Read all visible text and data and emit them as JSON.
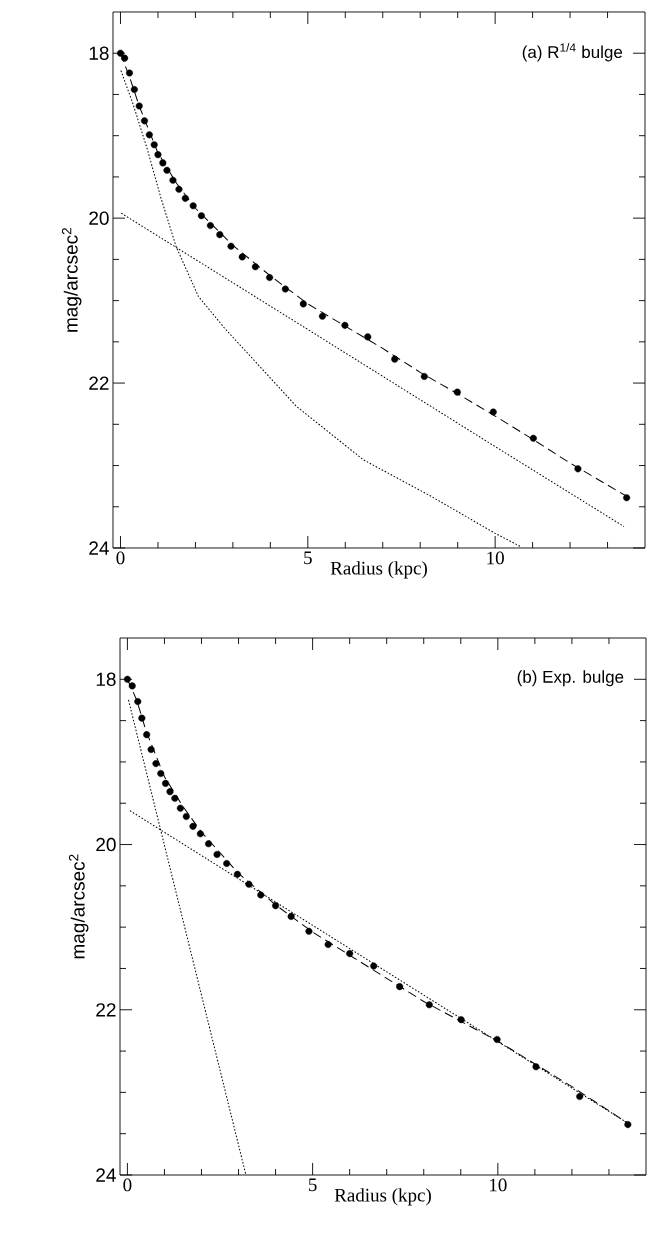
{
  "chart_data": [
    {
      "type": "scatter",
      "annotations": [
        "(a) R$^{1/4}$ bulge"
      ],
      "xlabel": "Radius (kpc)",
      "ylabel": "mag/arcsec$^{2}$",
      "xlim": [
        -0.2,
        14
      ],
      "ylim": [
        24,
        17.5
      ],
      "xticks": [
        0,
        {
          "value": 1,
          "label": null
        },
        {
          "value": 2,
          "label": null
        },
        {
          "value": 3,
          "label": null
        },
        {
          "value": 4,
          "label": null
        },
        5,
        {
          "value": 6,
          "label": null
        },
        {
          "value": 7,
          "label": null
        },
        {
          "value": 8,
          "label": null
        },
        {
          "value": 9,
          "label": null
        },
        10,
        {
          "value": 11,
          "label": null
        },
        {
          "value": 12,
          "label": null
        },
        {
          "value": 13,
          "label": null
        }
      ],
      "yticks": [
        18,
        {
          "value": 18.5,
          "label": null
        },
        {
          "value": 19,
          "label": null
        },
        {
          "value": 19.5,
          "label": null
        },
        20,
        {
          "value": 20.5,
          "label": null
        },
        {
          "value": 21,
          "label": null
        },
        {
          "value": 21.5,
          "label": null
        },
        22,
        {
          "value": 22.5,
          "label": null
        },
        {
          "value": 23,
          "label": null
        },
        {
          "value": 23.5,
          "label": null
        },
        24
      ],
      "series": [
        {
          "type": "scatter",
          "marker": "circle",
          "color": "#000000",
          "x": [
            0.0,
            0.11,
            0.24,
            0.37,
            0.5,
            0.64,
            0.77,
            0.9,
            1.0,
            1.13,
            1.24,
            1.4,
            1.56,
            1.73,
            1.94,
            2.16,
            2.4,
            2.65,
            2.95,
            3.25,
            3.6,
            3.98,
            4.4,
            4.88,
            5.39,
            5.99,
            6.6,
            7.32,
            8.11,
            8.99,
            9.95,
            11.02,
            12.21,
            13.51
          ],
          "values": [
            18.0,
            18.06,
            18.24,
            18.44,
            18.64,
            18.82,
            18.99,
            19.11,
            19.23,
            19.33,
            19.42,
            19.54,
            19.65,
            19.76,
            19.85,
            19.97,
            20.09,
            20.2,
            20.34,
            20.47,
            20.59,
            20.72,
            20.86,
            21.04,
            21.19,
            21.3,
            21.44,
            21.71,
            21.92,
            22.11,
            22.35,
            22.67,
            23.04,
            23.39
          ]
        },
        {
          "type": "line",
          "line_style": "dashed",
          "color": "#000000",
          "x": [
            0.0,
            0.25,
            0.5,
            1.0,
            1.5,
            2.0,
            3.0,
            4.0,
            5.0,
            6.0,
            7.0,
            8.0,
            9.0,
            10.0,
            11.0,
            12.0,
            13.5
          ],
          "values": [
            18.0,
            18.3,
            18.64,
            19.21,
            19.58,
            19.88,
            20.33,
            20.7,
            21.04,
            21.31,
            21.58,
            21.87,
            22.13,
            22.4,
            22.68,
            22.97,
            23.37
          ]
        },
        {
          "type": "line",
          "line_style": "dotted",
          "color": "#000000",
          "x": [
            0.01,
            0.33,
            0.72,
            1.07,
            1.48,
            2.08,
            2.77,
            4.69,
            6.48,
            8.28,
            9.99,
            10.67
          ],
          "values": [
            18.21,
            18.61,
            19.17,
            19.74,
            20.34,
            20.95,
            21.33,
            22.28,
            22.93,
            23.37,
            23.82,
            23.98
          ]
        },
        {
          "type": "line",
          "line_style": "dotted",
          "color": "#000000",
          "x": [
            0.02,
            5.0,
            10.0,
            13.44
          ],
          "values": [
            19.94,
            21.35,
            22.77,
            23.74
          ]
        }
      ]
    },
    {
      "type": "scatter",
      "annotations": [
        "(b) Exp. bulge"
      ],
      "xlabel": "Radius (kpc)",
      "ylabel": "mag/arcsec$^{2}$",
      "xlim": [
        -0.2,
        14
      ],
      "ylim": [
        24,
        17.5
      ],
      "xticks": [
        0,
        {
          "value": 1,
          "label": null
        },
        {
          "value": 2,
          "label": null
        },
        {
          "value": 3,
          "label": null
        },
        {
          "value": 4,
          "label": null
        },
        5,
        {
          "value": 6,
          "label": null
        },
        {
          "value": 7,
          "label": null
        },
        {
          "value": 8,
          "label": null
        },
        {
          "value": 9,
          "label": null
        },
        10,
        {
          "value": 11,
          "label": null
        },
        {
          "value": 12,
          "label": null
        },
        {
          "value": 13,
          "label": null
        }
      ],
      "yticks": [
        18,
        {
          "value": 18.5,
          "label": null
        },
        {
          "value": 19,
          "label": null
        },
        {
          "value": 19.5,
          "label": null
        },
        20,
        {
          "value": 20.5,
          "label": null
        },
        {
          "value": 21,
          "label": null
        },
        {
          "value": 21.5,
          "label": null
        },
        22,
        {
          "value": 22.5,
          "label": null
        },
        {
          "value": 23,
          "label": null
        },
        {
          "value": 23.5,
          "label": null
        },
        24
      ],
      "series": [
        {
          "type": "scatter",
          "marker": "circle",
          "color": "#000000",
          "x": [
            0.0,
            0.13,
            0.28,
            0.39,
            0.52,
            0.64,
            0.77,
            0.9,
            1.03,
            1.15,
            1.28,
            1.43,
            1.59,
            1.77,
            1.97,
            2.19,
            2.42,
            2.68,
            2.97,
            3.28,
            3.6,
            4.0,
            4.42,
            4.9,
            5.42,
            6.0,
            6.65,
            7.35,
            8.15,
            9.01,
            9.98,
            11.03,
            12.21,
            13.51
          ],
          "values": [
            18.0,
            18.08,
            18.27,
            18.47,
            18.67,
            18.85,
            19.02,
            19.14,
            19.26,
            19.36,
            19.44,
            19.56,
            19.66,
            19.78,
            19.87,
            19.99,
            20.12,
            20.23,
            20.36,
            20.48,
            20.61,
            20.74,
            20.87,
            21.05,
            21.21,
            21.32,
            21.47,
            21.72,
            21.94,
            22.12,
            22.36,
            22.69,
            23.05,
            23.39
          ]
        },
        {
          "type": "line",
          "line_style": "dashed",
          "color": "#000000",
          "x": [
            0.0,
            0.25,
            0.5,
            1.0,
            1.5,
            2.0,
            3.0,
            4.0,
            5.0,
            6.0,
            8.0,
            10.0,
            12.0,
            13.5
          ],
          "values": [
            18.0,
            18.25,
            18.62,
            19.18,
            19.54,
            19.85,
            20.35,
            20.73,
            21.06,
            21.34,
            21.9,
            22.38,
            22.93,
            23.37
          ]
        },
        {
          "type": "line",
          "line_style": "dotted",
          "color": "#000000",
          "x": [
            0.03,
            3.2
          ],
          "values": [
            18.25,
            24.0
          ]
        },
        {
          "type": "line",
          "line_style": "dotted",
          "color": "#000000",
          "x": [
            0.07,
            13.5
          ],
          "values": [
            19.59,
            23.37
          ]
        }
      ]
    }
  ]
}
